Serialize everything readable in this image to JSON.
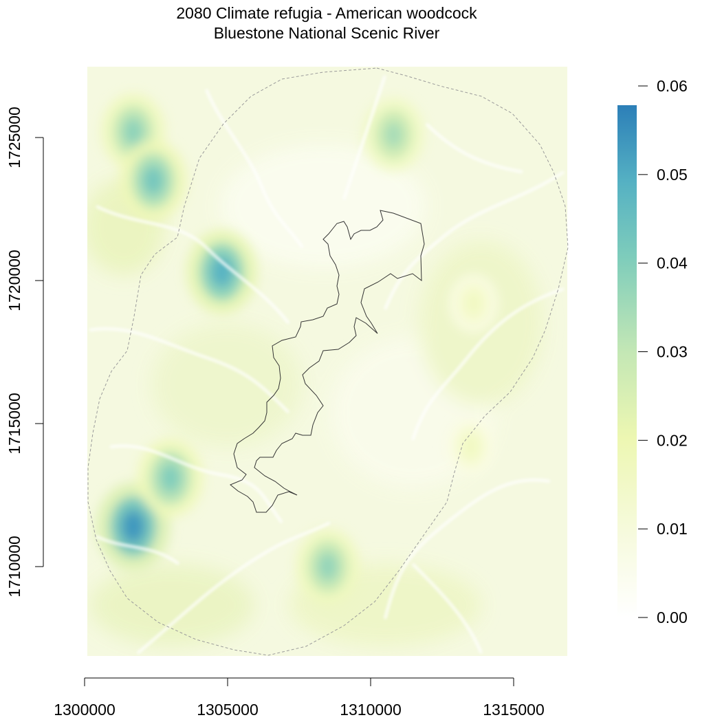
{
  "title": {
    "line1": "2080 Climate refugia - American woodcock",
    "line2": "Bluestone National Scenic River"
  },
  "colors": {
    "background": "#ffffff",
    "legend_low": "#ffffff",
    "legend_mid": "#eef6b4",
    "legend_high_mid": "#7fcdbb",
    "legend_high": "#2c7fb8",
    "boundary_line": "#333333",
    "buffer_line": "#9a9a9a"
  },
  "map": {
    "x_axis_ticks": [
      "1300000",
      "1305000",
      "1310000",
      "1315000"
    ],
    "y_axis_ticks": [
      "1710000",
      "1715000",
      "1720000",
      "1725000"
    ],
    "x_range": [
      1300000,
      1316800
    ],
    "y_range": [
      1707000,
      1728000
    ],
    "raster_description": "refugia probability surface",
    "hotspots": [
      {
        "x": 1301700,
        "y": 1725200,
        "value": 0.038
      },
      {
        "x": 1302400,
        "y": 1723500,
        "value": 0.042
      },
      {
        "x": 1304800,
        "y": 1720300,
        "value": 0.048
      },
      {
        "x": 1301700,
        "y": 1711400,
        "value": 0.053
      },
      {
        "x": 1303000,
        "y": 1713100,
        "value": 0.04
      },
      {
        "x": 1310800,
        "y": 1725100,
        "value": 0.034
      },
      {
        "x": 1308500,
        "y": 1710000,
        "value": 0.037
      },
      {
        "x": 1313600,
        "y": 1719200,
        "value": 0.016
      },
      {
        "x": 1313500,
        "y": 1714200,
        "value": 0.016
      }
    ]
  },
  "legend": {
    "ticks": [
      "0.00",
      "0.01",
      "0.02",
      "0.03",
      "0.04",
      "0.05",
      "0.06"
    ],
    "min": 0,
    "max": 0.0575
  }
}
